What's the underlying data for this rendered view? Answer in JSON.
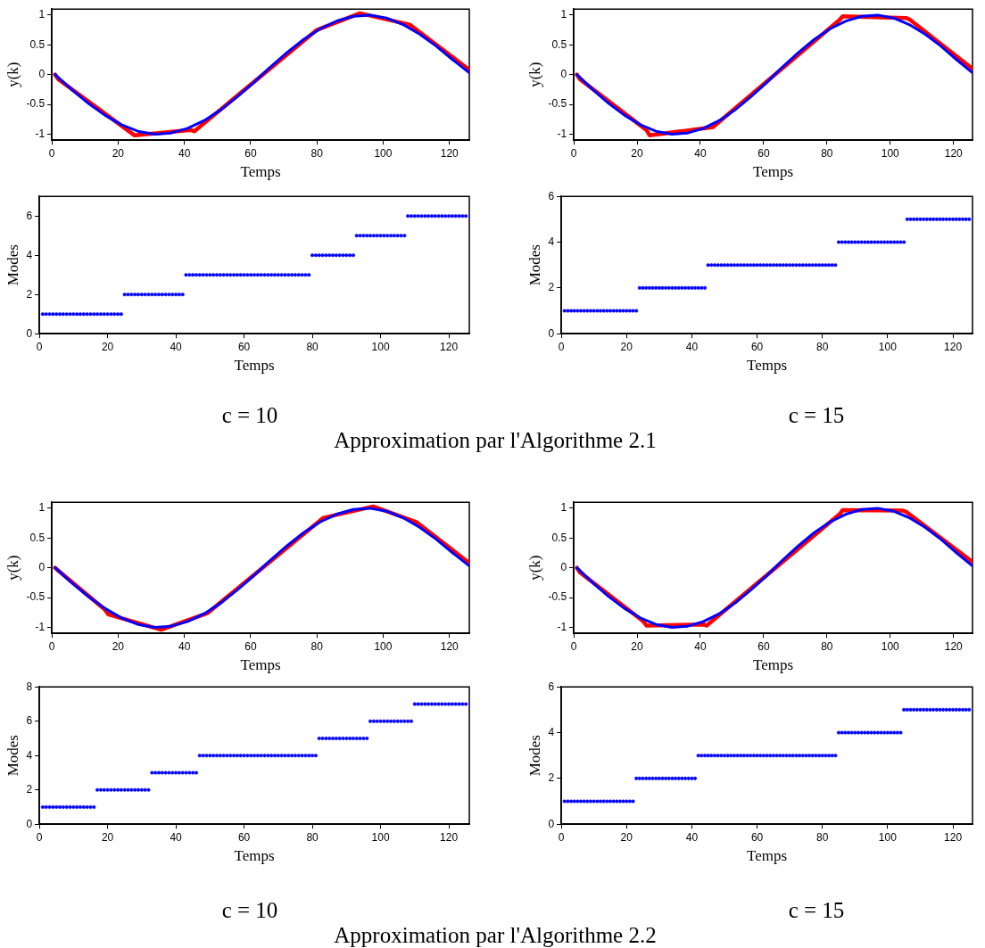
{
  "chart_data": [
    {
      "type": "line",
      "xlabel": "Temps",
      "ylabel": "y(k)",
      "xlim": [
        0,
        126
      ],
      "ylim": [
        -1.1,
        1.1
      ],
      "xticks": [
        0,
        20,
        40,
        60,
        80,
        100,
        120
      ],
      "yticks": [
        -1,
        -0.5,
        0,
        0.5,
        1
      ],
      "marker": "none",
      "series": [
        {
          "color": "#0000ff",
          "x": [
            1,
            6,
            11,
            16,
            21,
            26,
            31,
            36,
            41,
            46,
            51,
            56,
            61,
            66,
            71,
            76,
            81,
            86,
            91,
            96,
            101,
            106,
            111,
            116,
            121,
            126
          ],
          "values": [
            0,
            -0.25,
            -0.48,
            -0.68,
            -0.84,
            -0.95,
            -1,
            -0.98,
            -0.9,
            -0.77,
            -0.59,
            -0.37,
            -0.13,
            0.13,
            0.37,
            0.59,
            0.77,
            0.9,
            0.98,
            1,
            0.95,
            0.84,
            0.68,
            0.48,
            0.25,
            0.03
          ]
        },
        {
          "color": "#ff0000",
          "x": [
            1,
            2,
            25,
            42,
            43,
            80,
            93,
            108,
            126
          ],
          "values": [
            0,
            -0.08,
            -1.02,
            -0.93,
            -0.95,
            0.75,
            1.03,
            0.84,
            0.08
          ]
        }
      ]
    },
    {
      "type": "line",
      "xlabel": "Temps",
      "ylabel": "y(k)",
      "xlim": [
        0,
        126
      ],
      "ylim": [
        -1.1,
        1.1
      ],
      "xticks": [
        0,
        20,
        40,
        60,
        80,
        100,
        120
      ],
      "yticks": [
        -1,
        -0.5,
        0,
        0.5,
        1
      ],
      "marker": "none",
      "series": [
        {
          "color": "#0000ff",
          "x": [
            1,
            6,
            11,
            16,
            21,
            26,
            31,
            36,
            41,
            46,
            51,
            56,
            61,
            66,
            71,
            76,
            81,
            86,
            91,
            96,
            101,
            106,
            111,
            116,
            121,
            126
          ],
          "values": [
            0,
            -0.25,
            -0.48,
            -0.68,
            -0.84,
            -0.95,
            -1,
            -0.98,
            -0.9,
            -0.77,
            -0.59,
            -0.37,
            -0.13,
            0.13,
            0.37,
            0.59,
            0.77,
            0.9,
            0.98,
            1,
            0.95,
            0.84,
            0.68,
            0.48,
            0.25,
            0.03
          ]
        },
        {
          "color": "#ff0000",
          "x": [
            1,
            2,
            23,
            24,
            44,
            84,
            85,
            105,
            106,
            126
          ],
          "values": [
            0,
            -0.08,
            -0.93,
            -1.02,
            -0.88,
            0.92,
            0.98,
            0.95,
            0.93,
            0.1
          ]
        }
      ]
    },
    {
      "type": "scatter",
      "xlabel": "Temps",
      "ylabel": "Modes",
      "xlim": [
        0,
        126
      ],
      "ylim": [
        0,
        7
      ],
      "xticks": [
        0,
        20,
        40,
        60,
        80,
        100,
        120
      ],
      "yticks": [
        0,
        2,
        4,
        6
      ],
      "marker": "circle",
      "x": [
        1,
        2,
        3,
        4,
        5,
        6,
        7,
        8,
        9,
        10,
        11,
        12,
        13,
        14,
        15,
        16,
        17,
        18,
        19,
        20,
        21,
        22,
        23,
        24,
        25,
        26,
        27,
        28,
        29,
        30,
        31,
        32,
        33,
        34,
        35,
        36,
        37,
        38,
        39,
        40,
        41,
        42,
        43,
        44,
        45,
        46,
        47,
        48,
        49,
        50,
        51,
        52,
        53,
        54,
        55,
        56,
        57,
        58,
        59,
        60,
        61,
        62,
        63,
        64,
        65,
        66,
        67,
        68,
        69,
        70,
        71,
        72,
        73,
        74,
        75,
        76,
        77,
        78,
        79,
        80,
        81,
        82,
        83,
        84,
        85,
        86,
        87,
        88,
        89,
        90,
        91,
        92,
        93,
        94,
        95,
        96,
        97,
        98,
        99,
        100,
        101,
        102,
        103,
        104,
        105,
        106,
        107,
        108,
        109,
        110,
        111,
        112,
        113,
        114,
        115,
        116,
        117,
        118,
        119,
        120,
        121,
        122,
        123,
        124,
        125
      ],
      "series": [
        {
          "color": "#0000ff",
          "values": [
            1,
            1,
            1,
            1,
            1,
            1,
            1,
            1,
            1,
            1,
            1,
            1,
            1,
            1,
            1,
            1,
            1,
            1,
            1,
            1,
            1,
            1,
            1,
            1,
            2,
            2,
            2,
            2,
            2,
            2,
            2,
            2,
            2,
            2,
            2,
            2,
            2,
            2,
            2,
            2,
            2,
            2,
            3,
            3,
            3,
            3,
            3,
            3,
            3,
            3,
            3,
            3,
            3,
            3,
            3,
            3,
            3,
            3,
            3,
            3,
            3,
            3,
            3,
            3,
            3,
            3,
            3,
            3,
            3,
            3,
            3,
            3,
            3,
            3,
            3,
            3,
            3,
            3,
            3,
            4,
            4,
            4,
            4,
            4,
            4,
            4,
            4,
            4,
            4,
            4,
            4,
            4,
            5,
            5,
            5,
            5,
            5,
            5,
            5,
            5,
            5,
            5,
            5,
            5,
            5,
            5,
            5,
            6,
            6,
            6,
            6,
            6,
            6,
            6,
            6,
            6,
            6,
            6,
            6,
            6,
            6,
            6,
            6,
            6,
            6
          ]
        }
      ]
    },
    {
      "type": "scatter",
      "xlabel": "Temps",
      "ylabel": "Modes",
      "xlim": [
        0,
        126
      ],
      "ylim": [
        0,
        6
      ],
      "xticks": [
        0,
        20,
        40,
        60,
        80,
        100,
        120
      ],
      "yticks": [
        0,
        2,
        4,
        6
      ],
      "marker": "circle",
      "x": [
        1,
        2,
        3,
        4,
        5,
        6,
        7,
        8,
        9,
        10,
        11,
        12,
        13,
        14,
        15,
        16,
        17,
        18,
        19,
        20,
        21,
        22,
        23,
        24,
        25,
        26,
        27,
        28,
        29,
        30,
        31,
        32,
        33,
        34,
        35,
        36,
        37,
        38,
        39,
        40,
        41,
        42,
        43,
        44,
        45,
        46,
        47,
        48,
        49,
        50,
        51,
        52,
        53,
        54,
        55,
        56,
        57,
        58,
        59,
        60,
        61,
        62,
        63,
        64,
        65,
        66,
        67,
        68,
        69,
        70,
        71,
        72,
        73,
        74,
        75,
        76,
        77,
        78,
        79,
        80,
        81,
        82,
        83,
        84,
        85,
        86,
        87,
        88,
        89,
        90,
        91,
        92,
        93,
        94,
        95,
        96,
        97,
        98,
        99,
        100,
        101,
        102,
        103,
        104,
        105,
        106,
        107,
        108,
        109,
        110,
        111,
        112,
        113,
        114,
        115,
        116,
        117,
        118,
        119,
        120,
        121,
        122,
        123,
        124,
        125
      ],
      "series": [
        {
          "color": "#0000ff",
          "values": [
            1,
            1,
            1,
            1,
            1,
            1,
            1,
            1,
            1,
            1,
            1,
            1,
            1,
            1,
            1,
            1,
            1,
            1,
            1,
            1,
            1,
            1,
            1,
            2,
            2,
            2,
            2,
            2,
            2,
            2,
            2,
            2,
            2,
            2,
            2,
            2,
            2,
            2,
            2,
            2,
            2,
            2,
            2,
            2,
            3,
            3,
            3,
            3,
            3,
            3,
            3,
            3,
            3,
            3,
            3,
            3,
            3,
            3,
            3,
            3,
            3,
            3,
            3,
            3,
            3,
            3,
            3,
            3,
            3,
            3,
            3,
            3,
            3,
            3,
            3,
            3,
            3,
            3,
            3,
            3,
            3,
            3,
            3,
            3,
            4,
            4,
            4,
            4,
            4,
            4,
            4,
            4,
            4,
            4,
            4,
            4,
            4,
            4,
            4,
            4,
            4,
            4,
            4,
            4,
            4,
            5,
            5,
            5,
            5,
            5,
            5,
            5,
            5,
            5,
            5,
            5,
            5,
            5,
            5,
            5,
            5,
            5,
            5,
            5,
            5
          ]
        }
      ]
    },
    {
      "type": "other",
      "annotations": [
        "c = 10",
        "c = 15",
        "Approximation par l'Algorithme 2.1"
      ]
    },
    {
      "type": "line",
      "xlabel": "Temps",
      "ylabel": "y(k)",
      "xlim": [
        0,
        126
      ],
      "ylim": [
        -1.1,
        1.1
      ],
      "xticks": [
        0,
        20,
        40,
        60,
        80,
        100,
        120
      ],
      "yticks": [
        -1,
        -0.5,
        0,
        0.5,
        1
      ],
      "marker": "none",
      "series": [
        {
          "color": "#0000ff",
          "x": [
            1,
            6,
            11,
            16,
            21,
            26,
            31,
            36,
            41,
            46,
            51,
            56,
            61,
            66,
            71,
            76,
            81,
            86,
            91,
            96,
            101,
            106,
            111,
            116,
            121,
            126
          ],
          "values": [
            0,
            -0.25,
            -0.48,
            -0.68,
            -0.84,
            -0.95,
            -1,
            -0.98,
            -0.9,
            -0.77,
            -0.59,
            -0.37,
            -0.13,
            0.13,
            0.37,
            0.59,
            0.77,
            0.9,
            0.98,
            1,
            0.95,
            0.84,
            0.68,
            0.48,
            0.25,
            0.03
          ]
        },
        {
          "color": "#ff0000",
          "x": [
            1,
            2,
            16,
            17,
            33,
            46,
            47,
            82,
            97,
            110,
            126
          ],
          "values": [
            0,
            -0.05,
            -0.7,
            -0.78,
            -1.04,
            -0.78,
            -0.76,
            0.84,
            1.03,
            0.77,
            0.08
          ]
        }
      ]
    },
    {
      "type": "line",
      "xlabel": "Temps",
      "ylabel": "y(k)",
      "xlim": [
        0,
        126
      ],
      "ylim": [
        -1.1,
        1.1
      ],
      "xticks": [
        0,
        20,
        40,
        60,
        80,
        100,
        120
      ],
      "yticks": [
        -1,
        -0.5,
        0,
        0.5,
        1
      ],
      "marker": "none",
      "series": [
        {
          "color": "#0000ff",
          "x": [
            1,
            6,
            11,
            16,
            21,
            26,
            31,
            36,
            41,
            46,
            51,
            56,
            61,
            66,
            71,
            76,
            81,
            86,
            91,
            96,
            101,
            106,
            111,
            116,
            121,
            126
          ],
          "values": [
            0,
            -0.25,
            -0.48,
            -0.68,
            -0.84,
            -0.95,
            -1,
            -0.98,
            -0.9,
            -0.77,
            -0.59,
            -0.37,
            -0.13,
            0.13,
            0.37,
            0.59,
            0.77,
            0.9,
            0.98,
            1,
            0.95,
            0.84,
            0.68,
            0.48,
            0.25,
            0.03
          ]
        },
        {
          "color": "#ff0000",
          "x": [
            1,
            2,
            22,
            23,
            41,
            42,
            84,
            85,
            104,
            105,
            126
          ],
          "values": [
            0,
            -0.08,
            -0.9,
            -0.97,
            -0.95,
            -0.97,
            0.9,
            0.97,
            0.96,
            0.94,
            0.1
          ]
        }
      ]
    },
    {
      "type": "scatter",
      "xlabel": "Temps",
      "ylabel": "Modes",
      "xlim": [
        0,
        126
      ],
      "ylim": [
        0,
        8
      ],
      "xticks": [
        0,
        20,
        40,
        60,
        80,
        100,
        120
      ],
      "yticks": [
        0,
        2,
        4,
        6,
        8
      ],
      "marker": "circle",
      "x": [
        1,
        2,
        3,
        4,
        5,
        6,
        7,
        8,
        9,
        10,
        11,
        12,
        13,
        14,
        15,
        16,
        17,
        18,
        19,
        20,
        21,
        22,
        23,
        24,
        25,
        26,
        27,
        28,
        29,
        30,
        31,
        32,
        33,
        34,
        35,
        36,
        37,
        38,
        39,
        40,
        41,
        42,
        43,
        44,
        45,
        46,
        47,
        48,
        49,
        50,
        51,
        52,
        53,
        54,
        55,
        56,
        57,
        58,
        59,
        60,
        61,
        62,
        63,
        64,
        65,
        66,
        67,
        68,
        69,
        70,
        71,
        72,
        73,
        74,
        75,
        76,
        77,
        78,
        79,
        80,
        81,
        82,
        83,
        84,
        85,
        86,
        87,
        88,
        89,
        90,
        91,
        92,
        93,
        94,
        95,
        96,
        97,
        98,
        99,
        100,
        101,
        102,
        103,
        104,
        105,
        106,
        107,
        108,
        109,
        110,
        111,
        112,
        113,
        114,
        115,
        116,
        117,
        118,
        119,
        120,
        121,
        122,
        123,
        124,
        125
      ],
      "series": [
        {
          "color": "#0000ff",
          "values": [
            1,
            1,
            1,
            1,
            1,
            1,
            1,
            1,
            1,
            1,
            1,
            1,
            1,
            1,
            1,
            1,
            2,
            2,
            2,
            2,
            2,
            2,
            2,
            2,
            2,
            2,
            2,
            2,
            2,
            2,
            2,
            2,
            3,
            3,
            3,
            3,
            3,
            3,
            3,
            3,
            3,
            3,
            3,
            3,
            3,
            3,
            4,
            4,
            4,
            4,
            4,
            4,
            4,
            4,
            4,
            4,
            4,
            4,
            4,
            4,
            4,
            4,
            4,
            4,
            4,
            4,
            4,
            4,
            4,
            4,
            4,
            4,
            4,
            4,
            4,
            4,
            4,
            4,
            4,
            4,
            4,
            5,
            5,
            5,
            5,
            5,
            5,
            5,
            5,
            5,
            5,
            5,
            5,
            5,
            5,
            5,
            6,
            6,
            6,
            6,
            6,
            6,
            6,
            6,
            6,
            6,
            6,
            6,
            6,
            7,
            7,
            7,
            7,
            7,
            7,
            7,
            7,
            7,
            7,
            7,
            7,
            7,
            7,
            7,
            7
          ]
        }
      ]
    },
    {
      "type": "scatter",
      "xlabel": "Temps",
      "ylabel": "Modes",
      "xlim": [
        0,
        126
      ],
      "ylim": [
        0,
        6
      ],
      "xticks": [
        0,
        20,
        40,
        60,
        80,
        100,
        120
      ],
      "yticks": [
        0,
        2,
        4,
        6
      ],
      "marker": "circle",
      "x": [
        1,
        2,
        3,
        4,
        5,
        6,
        7,
        8,
        9,
        10,
        11,
        12,
        13,
        14,
        15,
        16,
        17,
        18,
        19,
        20,
        21,
        22,
        23,
        24,
        25,
        26,
        27,
        28,
        29,
        30,
        31,
        32,
        33,
        34,
        35,
        36,
        37,
        38,
        39,
        40,
        41,
        42,
        43,
        44,
        45,
        46,
        47,
        48,
        49,
        50,
        51,
        52,
        53,
        54,
        55,
        56,
        57,
        58,
        59,
        60,
        61,
        62,
        63,
        64,
        65,
        66,
        67,
        68,
        69,
        70,
        71,
        72,
        73,
        74,
        75,
        76,
        77,
        78,
        79,
        80,
        81,
        82,
        83,
        84,
        85,
        86,
        87,
        88,
        89,
        90,
        91,
        92,
        93,
        94,
        95,
        96,
        97,
        98,
        99,
        100,
        101,
        102,
        103,
        104,
        105,
        106,
        107,
        108,
        109,
        110,
        111,
        112,
        113,
        114,
        115,
        116,
        117,
        118,
        119,
        120,
        121,
        122,
        123,
        124,
        125
      ],
      "series": [
        {
          "color": "#0000ff",
          "values": [
            1,
            1,
            1,
            1,
            1,
            1,
            1,
            1,
            1,
            1,
            1,
            1,
            1,
            1,
            1,
            1,
            1,
            1,
            1,
            1,
            1,
            1,
            2,
            2,
            2,
            2,
            2,
            2,
            2,
            2,
            2,
            2,
            2,
            2,
            2,
            2,
            2,
            2,
            2,
            2,
            2,
            3,
            3,
            3,
            3,
            3,
            3,
            3,
            3,
            3,
            3,
            3,
            3,
            3,
            3,
            3,
            3,
            3,
            3,
            3,
            3,
            3,
            3,
            3,
            3,
            3,
            3,
            3,
            3,
            3,
            3,
            3,
            3,
            3,
            3,
            3,
            3,
            3,
            3,
            3,
            3,
            3,
            3,
            3,
            4,
            4,
            4,
            4,
            4,
            4,
            4,
            4,
            4,
            4,
            4,
            4,
            4,
            4,
            4,
            4,
            4,
            4,
            4,
            4,
            5,
            5,
            5,
            5,
            5,
            5,
            5,
            5,
            5,
            5,
            5,
            5,
            5,
            5,
            5,
            5,
            5,
            5,
            5,
            5,
            5
          ]
        }
      ]
    },
    {
      "type": "other",
      "annotations": [
        "c = 10",
        "c = 15",
        "Approximation par l'Algorithme 2.2"
      ]
    }
  ]
}
